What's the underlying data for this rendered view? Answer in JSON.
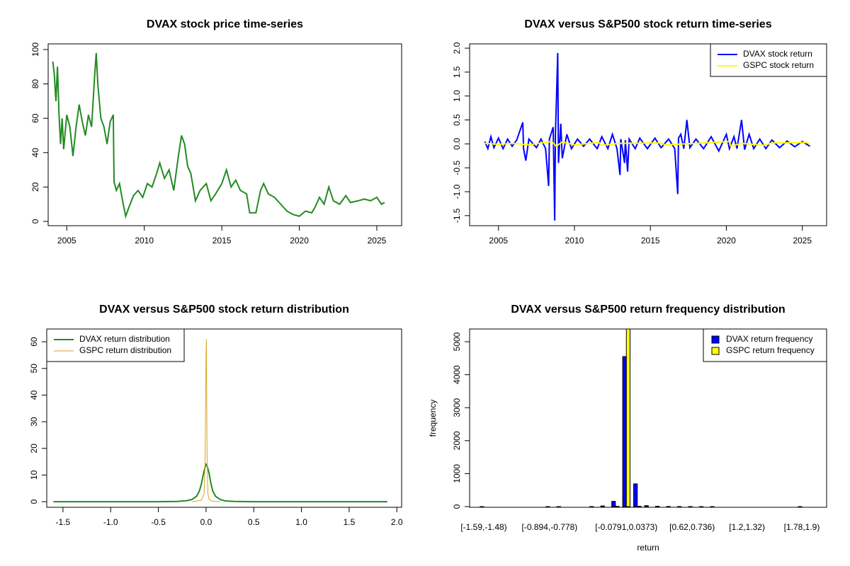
{
  "chart_data": [
    {
      "type": "line",
      "title": "DVAX stock price time-series",
      "color": "#228B22",
      "x": [
        2004.1,
        2004.2,
        2004.3,
        2004.4,
        2004.5,
        2004.6,
        2004.7,
        2004.8,
        2005.0,
        2005.2,
        2005.4,
        2005.6,
        2005.8,
        2006.0,
        2006.2,
        2006.4,
        2006.6,
        2006.8,
        2006.9,
        2007.0,
        2007.2,
        2007.4,
        2007.6,
        2007.8,
        2008.0,
        2008.05,
        2008.2,
        2008.4,
        2008.6,
        2008.8,
        2009.0,
        2009.3,
        2009.6,
        2009.9,
        2010.2,
        2010.5,
        2010.8,
        2011.0,
        2011.3,
        2011.6,
        2011.9,
        2012.2,
        2012.4,
        2012.6,
        2012.8,
        2013.0,
        2013.3,
        2013.6,
        2014.0,
        2014.3,
        2014.6,
        2015.0,
        2015.3,
        2015.6,
        2015.9,
        2016.2,
        2016.6,
        2016.8,
        2017.2,
        2017.5,
        2017.7,
        2018.0,
        2018.4,
        2018.8,
        2019.2,
        2019.6,
        2020.0,
        2020.4,
        2020.8,
        2021.0,
        2021.3,
        2021.6,
        2021.9,
        2022.2,
        2022.6,
        2023.0,
        2023.3,
        2023.8,
        2024.2,
        2024.6,
        2025.0,
        2025.3,
        2025.5
      ],
      "values": [
        93,
        85,
        70,
        90,
        62,
        45,
        60,
        42,
        62,
        55,
        38,
        55,
        68,
        58,
        50,
        62,
        55,
        85,
        98,
        80,
        60,
        55,
        45,
        58,
        62,
        23,
        18,
        22,
        12,
        3,
        8,
        15,
        18,
        14,
        22,
        20,
        28,
        34,
        25,
        30,
        18,
        38,
        50,
        45,
        32,
        28,
        12,
        18,
        22,
        12,
        16,
        22,
        30,
        20,
        24,
        18,
        16,
        5,
        5,
        18,
        22,
        16,
        14,
        10,
        6,
        4,
        3,
        6,
        5,
        8,
        14,
        10,
        20,
        12,
        10,
        15,
        11,
        12,
        13,
        12,
        14,
        10,
        11
      ],
      "xlim": [
        2003.8,
        2026.6
      ],
      "xticks": [
        2005,
        2010,
        2015,
        2020,
        2025
      ],
      "ylim": [
        -2.5,
        103.3
      ],
      "yticks": [
        0,
        20,
        40,
        60,
        80,
        100
      ]
    },
    {
      "type": "line",
      "title": "DVAX versus S&P500 stock return time-series",
      "legend": "topright",
      "series": [
        {
          "name": "DVAX stock return",
          "color": "#0000FF",
          "x": [
            2004.1,
            2004.3,
            2004.5,
            2004.7,
            2005.0,
            2005.3,
            2005.6,
            2005.9,
            2006.2,
            2006.6,
            2006.65,
            2006.8,
            2007.0,
            2007.5,
            2007.8,
            2008.1,
            2008.3,
            2008.35,
            2008.6,
            2008.7,
            2008.75,
            2008.9,
            2008.95,
            2009.1,
            2009.2,
            2009.5,
            2009.8,
            2010.2,
            2010.6,
            2011.0,
            2011.5,
            2011.8,
            2012.2,
            2012.5,
            2012.8,
            2013.0,
            2013.05,
            2013.3,
            2013.35,
            2013.5,
            2013.6,
            2014.0,
            2014.3,
            2014.8,
            2015.3,
            2015.7,
            2016.2,
            2016.6,
            2016.8,
            2016.85,
            2017.0,
            2017.2,
            2017.4,
            2017.6,
            2018.0,
            2018.5,
            2019.0,
            2019.5,
            2020.0,
            2020.2,
            2020.5,
            2020.7,
            2021.0,
            2021.2,
            2021.5,
            2021.8,
            2022.2,
            2022.6,
            2023.0,
            2023.5,
            2024.0,
            2024.5,
            2025.0,
            2025.5
          ],
          "values": [
            0.05,
            -0.1,
            0.15,
            -0.08,
            0.12,
            -0.1,
            0.1,
            -0.05,
            0.08,
            0.45,
            -0.1,
            -0.35,
            0.1,
            -0.08,
            0.1,
            -0.1,
            -0.88,
            0.1,
            0.35,
            -1.6,
            0.2,
            1.9,
            -0.4,
            0.42,
            -0.3,
            0.2,
            -0.1,
            0.1,
            -0.05,
            0.1,
            -0.1,
            0.15,
            -0.1,
            0.2,
            -0.1,
            -0.65,
            0.1,
            -0.4,
            0.08,
            -0.58,
            0.1,
            -0.1,
            0.12,
            -0.1,
            0.12,
            -0.08,
            0.1,
            -0.1,
            -1.05,
            0.12,
            0.2,
            -0.1,
            0.5,
            -0.08,
            0.1,
            -0.1,
            0.15,
            -0.15,
            0.2,
            -0.1,
            0.15,
            -0.1,
            0.5,
            -0.12,
            0.2,
            -0.1,
            0.1,
            -0.1,
            0.08,
            -0.08,
            0.06,
            -0.06,
            0.05,
            -0.05
          ]
        },
        {
          "name": "GSPC stock return",
          "color": "#FFFF00",
          "x": [
            2004.1,
            2005,
            2006,
            2007,
            2008.5,
            2008.8,
            2009.2,
            2010,
            2011.6,
            2011.8,
            2013,
            2015.6,
            2016,
            2018,
            2020.2,
            2020.3,
            2021,
            2022.5,
            2023,
            2025.3,
            2025.5
          ],
          "values": [
            0.01,
            -0.01,
            0.01,
            -0.02,
            0.05,
            -0.05,
            0.04,
            -0.02,
            0.03,
            -0.03,
            0.01,
            0.02,
            -0.02,
            0.01,
            0.05,
            -0.05,
            0.01,
            -0.03,
            0.02,
            0.03,
            -0.02
          ]
        }
      ],
      "xlim": [
        2003.1,
        2026.6
      ],
      "xticks": [
        2005,
        2010,
        2015,
        2020,
        2025
      ],
      "ylim": [
        -1.71,
        2.09
      ],
      "yticks": [
        -1.5,
        {
          "value": -1.0,
          "label": "-1.0"
        },
        -0.5,
        {
          "value": 0,
          "label": "0.0"
        },
        0.5,
        {
          "value": 1.0,
          "label": "1.0"
        },
        1.5,
        {
          "value": 2.0,
          "label": "2.0"
        }
      ]
    },
    {
      "type": "line",
      "title": "DVAX versus S&P500 stock return distribution",
      "legend": "topleft",
      "series": [
        {
          "name": "DVAX return distribution",
          "color": "#228B22",
          "x": [
            -1.6,
            -0.5,
            -0.3,
            -0.2,
            -0.15,
            -0.1,
            -0.07,
            -0.05,
            -0.03,
            -0.01,
            0,
            0.01,
            0.03,
            0.05,
            0.07,
            0.1,
            0.15,
            0.2,
            0.3,
            0.5,
            1.9
          ],
          "values": [
            0,
            0,
            0.1,
            0.4,
            0.8,
            2,
            4,
            6.5,
            10,
            13,
            14,
            13.5,
            11,
            7,
            4,
            2,
            0.8,
            0.3,
            0.1,
            0,
            0
          ]
        },
        {
          "name": "GSPC return distribution",
          "color": "#DAA520",
          "x": [
            -0.15,
            -0.05,
            -0.02,
            -0.01,
            -0.005,
            0,
            0.003,
            0.006,
            0.01,
            0.015,
            0.02,
            0.03,
            0.06,
            0.15
          ],
          "values": [
            0,
            0.5,
            3,
            15,
            35,
            55,
            61,
            45,
            20,
            8,
            3,
            1,
            0.2,
            0
          ]
        }
      ],
      "xlim": [
        -1.67,
        2.05
      ],
      "xticks": [
        -1.5,
        {
          "value": -1.0,
          "label": "-1.0"
        },
        -0.5,
        {
          "value": 0,
          "label": "0.0"
        },
        0.5,
        {
          "value": 1.0,
          "label": "1.0"
        },
        1.5,
        {
          "value": 2.0,
          "label": "2.0"
        }
      ],
      "ylim": [
        -2.1,
        64.8
      ],
      "yticks": [
        0,
        10,
        20,
        30,
        40,
        50,
        60
      ]
    },
    {
      "type": "bar",
      "title": "DVAX versus S&P500 return frequency distribution",
      "legend": "topright",
      "xlabel": "return",
      "ylabel": "frequency",
      "categories": [
        "[-1.59,-1.48)",
        null,
        null,
        null,
        null,
        null,
        "[-0.894,-0.778)",
        null,
        null,
        null,
        null,
        null,
        null,
        "[-0.0791,0.0373)",
        null,
        null,
        null,
        null,
        null,
        "[0.62,0.736)",
        null,
        null,
        null,
        null,
        "[1.2,1.32)",
        null,
        null,
        null,
        null,
        "[1.78,1.9)"
      ],
      "series": [
        {
          "name": "DVAX return frequency",
          "color": "#0000FF",
          "values": [
            1,
            0,
            0,
            0,
            0,
            0,
            1,
            1,
            0,
            0,
            2,
            20,
            160,
            4550,
            690,
            30,
            10,
            5,
            3,
            2,
            1,
            1,
            0,
            0,
            0,
            0,
            0,
            0,
            0,
            1
          ]
        },
        {
          "name": "GSPC return frequency",
          "color": "#FFFF00",
          "values": [
            0,
            0,
            0,
            0,
            0,
            0,
            0,
            0,
            0,
            0,
            0,
            0,
            8,
            5405,
            10,
            0,
            0,
            0,
            0,
            0,
            0,
            0,
            0,
            0,
            0,
            0,
            0,
            0,
            0,
            0
          ]
        }
      ],
      "ylim": [
        -20,
        5386
      ],
      "yticks": [
        0,
        1000,
        2000,
        3000,
        4000,
        5000
      ]
    }
  ]
}
